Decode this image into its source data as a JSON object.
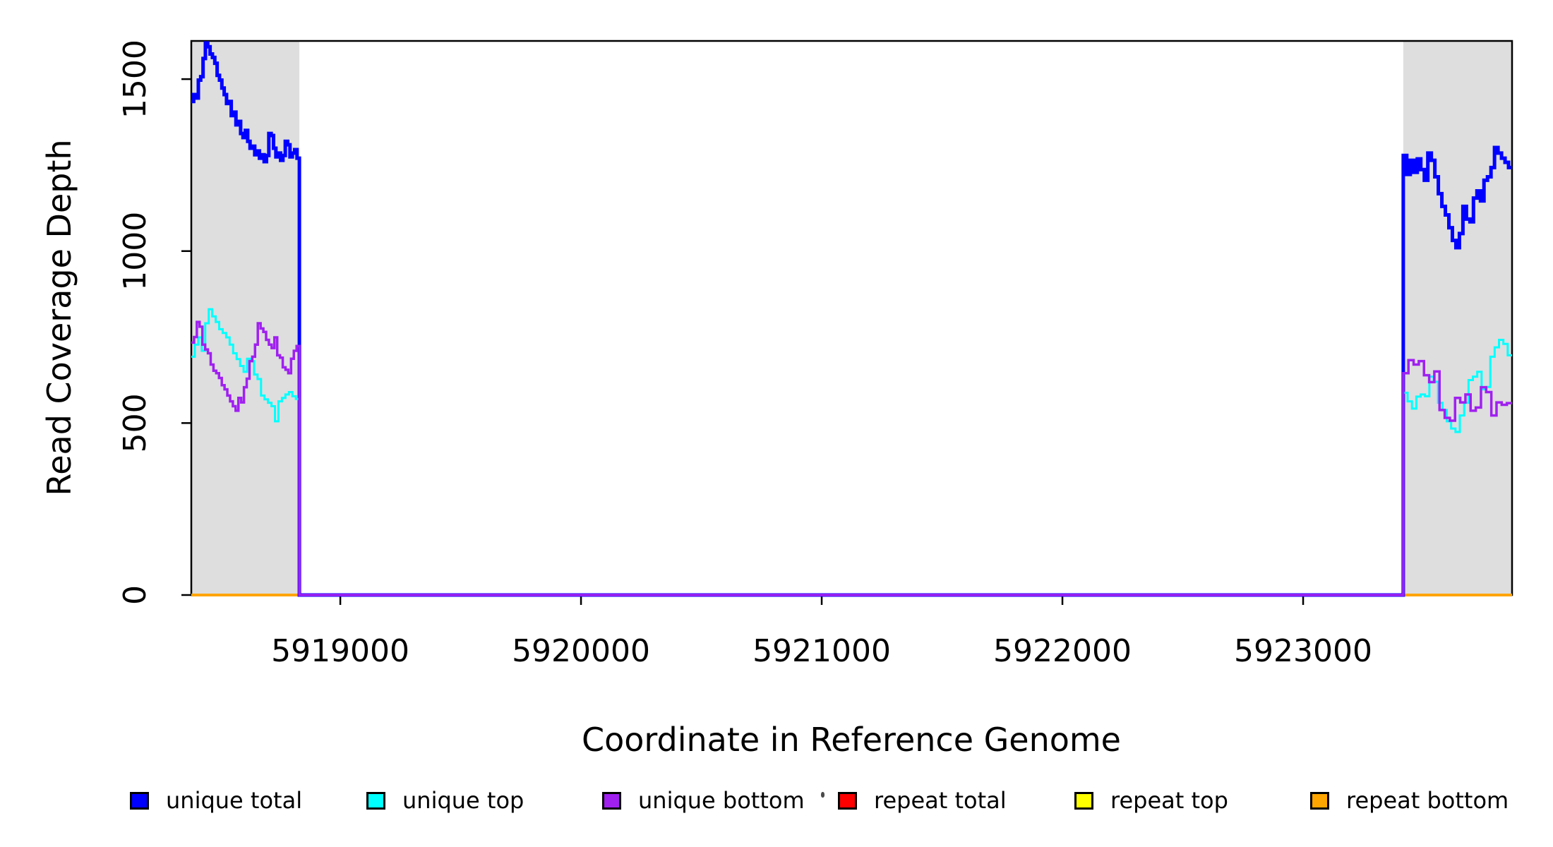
{
  "axes": {
    "xlabel": "Coordinate in Reference Genome",
    "ylabel": "Read Coverage Depth",
    "x_tick_labels": [
      "5919000",
      "5920000",
      "5921000",
      "5922000",
      "5923000"
    ],
    "y_tick_labels": [
      "0",
      "500",
      "1000",
      "1500"
    ]
  },
  "legend": {
    "entries": [
      {
        "label": "unique total",
        "color": "#0000FF"
      },
      {
        "label": "unique top",
        "color": "#00FFFF"
      },
      {
        "label": "unique bottom",
        "color": "#A020F0"
      },
      {
        "label": "repeat total",
        "color": "#FF0000"
      },
      {
        "label": "repeat top",
        "color": "#FFFF00"
      },
      {
        "label": "repeat bottom",
        "color": "#FFA500"
      }
    ]
  },
  "chart_data": {
    "type": "line",
    "style": "step",
    "title": "",
    "xlabel": "Coordinate in Reference Genome",
    "ylabel": "Read Coverage Depth",
    "x_range": [
      5918381,
      5923868
    ],
    "y_range": [
      0,
      1611
    ],
    "x_ticks": [
      5919000,
      5920000,
      5921000,
      5922000,
      5923000
    ],
    "y_ticks": [
      0,
      500,
      1000,
      1500
    ],
    "grid": false,
    "legend_position": "bottom",
    "shaded_regions": [
      {
        "x0": 5918381,
        "x1": 5918830,
        "color": "#DEDEDE"
      },
      {
        "x0": 5923416,
        "x1": 5923868,
        "color": "#DEDEDE"
      }
    ],
    "series": [
      {
        "name": "repeat total",
        "color": "#FF0000",
        "width": 4,
        "segments": [
          {
            "x0": 5918381,
            "x1": 5918830,
            "values": [
              0
            ]
          },
          {
            "x0": 5923416,
            "x1": 5923868,
            "values": [
              0
            ]
          }
        ]
      },
      {
        "name": "repeat top",
        "color": "#FFFF00",
        "width": 4,
        "segments": [
          {
            "x0": 5918381,
            "x1": 5918830,
            "values": [
              0
            ]
          },
          {
            "x0": 5923416,
            "x1": 5923868,
            "values": [
              0
            ]
          }
        ]
      },
      {
        "name": "repeat bottom",
        "color": "#FFA500",
        "width": 4,
        "segments": [
          {
            "x0": 5918381,
            "x1": 5918830,
            "values": [
              0
            ]
          },
          {
            "x0": 5923416,
            "x1": 5923868,
            "values": [
              0
            ]
          }
        ]
      },
      {
        "name": "unique total",
        "color": "#0000FF",
        "width": 5,
        "segments": [
          {
            "x0": 5918381,
            "x1": 5918830,
            "values": [
              1435,
              1455,
              1445,
              1497,
              1507,
              1560,
              1605,
              1594,
              1573,
              1563,
              1546,
              1511,
              1497,
              1474,
              1455,
              1429,
              1435,
              1394,
              1404,
              1367,
              1377,
              1342,
              1330,
              1351,
              1319,
              1299,
              1305,
              1280,
              1291,
              1270,
              1280,
              1260,
              1278,
              1342,
              1336,
              1299,
              1274,
              1285,
              1264,
              1278,
              1319,
              1309,
              1274,
              1285,
              1295,
              1270
            ]
          },
          {
            "x0": 5918830,
            "x1": 5923416,
            "values": [
              0
            ]
          },
          {
            "x0": 5923416,
            "x1": 5923868,
            "values": [
              1278,
              1223,
              1264,
              1229,
              1268,
              1237,
              1206,
              1285,
              1264,
              1216,
              1167,
              1130,
              1105,
              1068,
              1031,
              1010,
              1051,
              1130,
              1093,
              1085,
              1154,
              1175,
              1146,
              1206,
              1216,
              1243,
              1301,
              1285,
              1270,
              1258,
              1243
            ]
          }
        ]
      },
      {
        "name": "unique top",
        "color": "#00FFFF",
        "width": 3,
        "segments": [
          {
            "x0": 5918381,
            "x1": 5918830,
            "values": [
              693,
              728,
              749,
              710,
              790,
              831,
              810,
              794,
              773,
              762,
              749,
              728,
              703,
              686,
              666,
              649,
              687,
              680,
              641,
              628,
              580,
              569,
              559,
              549,
              505,
              563,
              573,
              583,
              590,
              578,
              570
            ]
          },
          {
            "x0": 5918830,
            "x1": 5923416,
            "values": [
              0
            ]
          },
          {
            "x0": 5923416,
            "x1": 5923868,
            "values": [
              588,
              563,
              542,
              577,
              583,
              578,
              635,
              620,
              559,
              538,
              505,
              484,
              474,
              522,
              559,
              625,
              635,
              649,
              598,
              605,
              693,
              720,
              742,
              730,
              697
            ]
          }
        ]
      },
      {
        "name": "unique bottom",
        "color": "#A020F0",
        "width": 3.5,
        "segments": [
          {
            "x0": 5918381,
            "x1": 5918830,
            "values": [
              734,
              750,
              794,
              780,
              728,
              714,
              703,
              670,
              652,
              645,
              631,
              610,
              598,
              580,
              563,
              549,
              536,
              573,
              560,
              604,
              629,
              680,
              693,
              728,
              790,
              775,
              765,
              742,
              728,
              718,
              749,
              697,
              690,
              662,
              655,
              645,
              687,
              710,
              724
            ]
          },
          {
            "x0": 5918830,
            "x1": 5923416,
            "values": [
              0
            ]
          },
          {
            "x0": 5923416,
            "x1": 5923868,
            "values": [
              645,
              683,
              670,
              680,
              639,
              619,
              650,
              538,
              515,
              507,
              573,
              560,
              583,
              536,
              545,
              604,
              590,
              522,
              560,
              553,
              558
            ]
          }
        ]
      }
    ]
  }
}
